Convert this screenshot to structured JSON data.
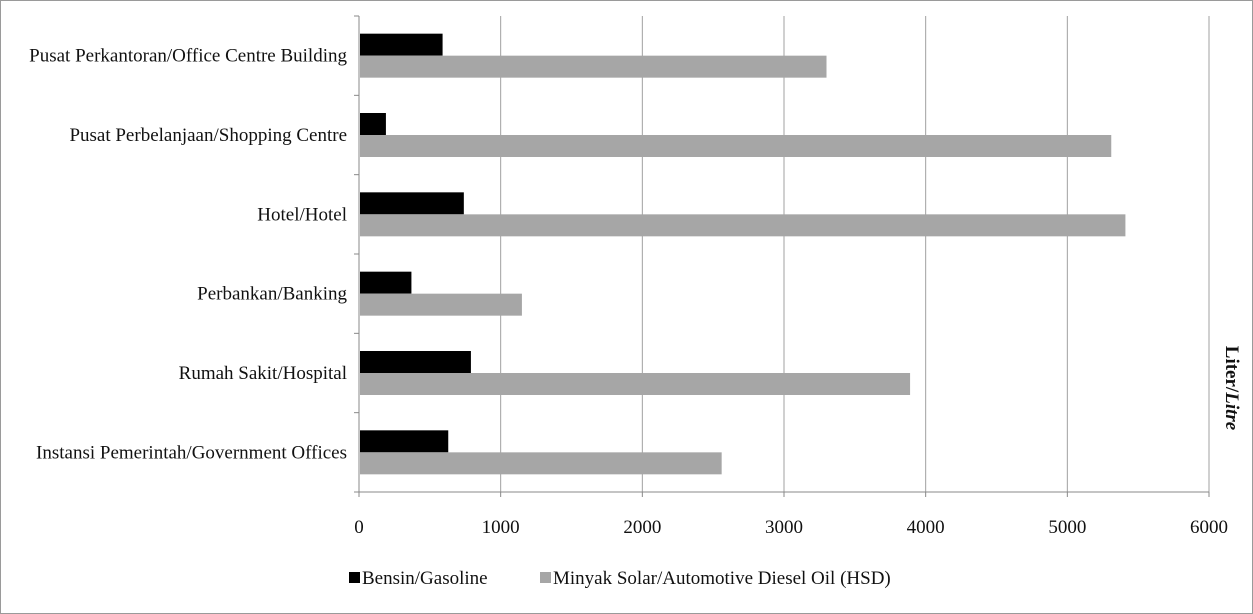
{
  "chart_data": {
    "type": "bar",
    "orientation": "horizontal",
    "categories": [
      "Pusat Perkantoran/Office Centre Building",
      "Pusat Perbelanjaan/Shopping Centre",
      "Hotel/Hotel",
      "Perbankan/Banking",
      "Rumah Sakit/Hospital",
      "Instansi Pemerintah/Government Offices"
    ],
    "series": [
      {
        "name": "Bensin/Gasoline",
        "color": "#000000",
        "values": [
          590,
          190,
          740,
          370,
          790,
          630
        ]
      },
      {
        "name": "Minyak Solar/Automotive Diesel Oil (HSD)",
        "color": "#a6a6a6",
        "values": [
          3300,
          5310,
          5410,
          1150,
          3890,
          2560
        ]
      }
    ],
    "xlim": [
      0,
      6000
    ],
    "xticks": [
      "0",
      "1000",
      "2000",
      "3000",
      "4000",
      "5000",
      "6000"
    ],
    "grid": true,
    "legend_position": "bottom",
    "unit_label_parts": [
      "Liter/",
      "Litre"
    ]
  }
}
